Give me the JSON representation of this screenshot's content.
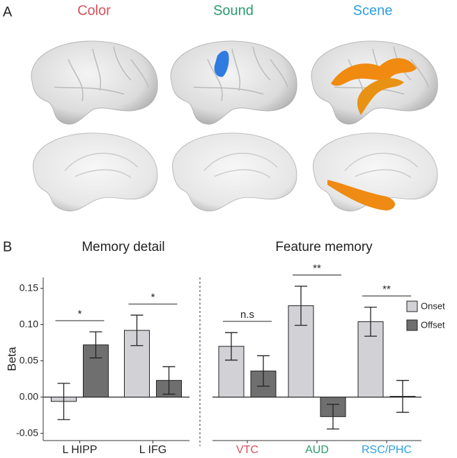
{
  "figure": {
    "panel_labels": [
      "A",
      "B"
    ],
    "brain_titles": [
      "Color",
      "Sound",
      "Scene"
    ],
    "brain_title_colors": [
      "#d9505a",
      "#2a9a6a",
      "#2f9ee0"
    ]
  },
  "chart_data": [
    {
      "type": "bar",
      "title": "Memory detail",
      "ylabel": "Beta",
      "categories": [
        "L HIPP",
        "L IFG"
      ],
      "series": [
        {
          "name": "Onset",
          "color": "#d2d2d6",
          "values": [
            -0.006,
            0.092
          ],
          "errors": [
            0.025,
            0.021
          ]
        },
        {
          "name": "Offset",
          "color": "#6f6f6f",
          "values": [
            0.072,
            0.023
          ],
          "errors": [
            0.018,
            0.019
          ]
        }
      ],
      "annotations": [
        "*",
        "*"
      ],
      "ylim": [
        -0.06,
        0.165
      ],
      "yticks": [
        {
          "value": -0.05,
          "label": "-0.05"
        },
        {
          "value": 0,
          "label": "0.00"
        },
        0.05,
        {
          "value": 0.1,
          "label": "0.10"
        },
        0.15
      ]
    },
    {
      "type": "bar",
      "title": "Feature memory",
      "categories": [
        "VTC",
        "AUD",
        "RSC/PHC"
      ],
      "category_colors": [
        "#d9505a",
        "#2a9a6a",
        "#2f9ee0"
      ],
      "series": [
        {
          "name": "Onset",
          "color": "#d2d2d6",
          "values": [
            0.07,
            0.126,
            0.104
          ],
          "errors": [
            0.019,
            0.027,
            0.02
          ]
        },
        {
          "name": "Offset",
          "color": "#6f6f6f",
          "values": [
            0.036,
            -0.027,
            0.001
          ],
          "errors": [
            0.021,
            0.017,
            0.022
          ]
        }
      ],
      "annotations": [
        "n.s",
        "**",
        "**"
      ],
      "ylim": [
        -0.06,
        0.165
      ],
      "legend": "right"
    }
  ]
}
